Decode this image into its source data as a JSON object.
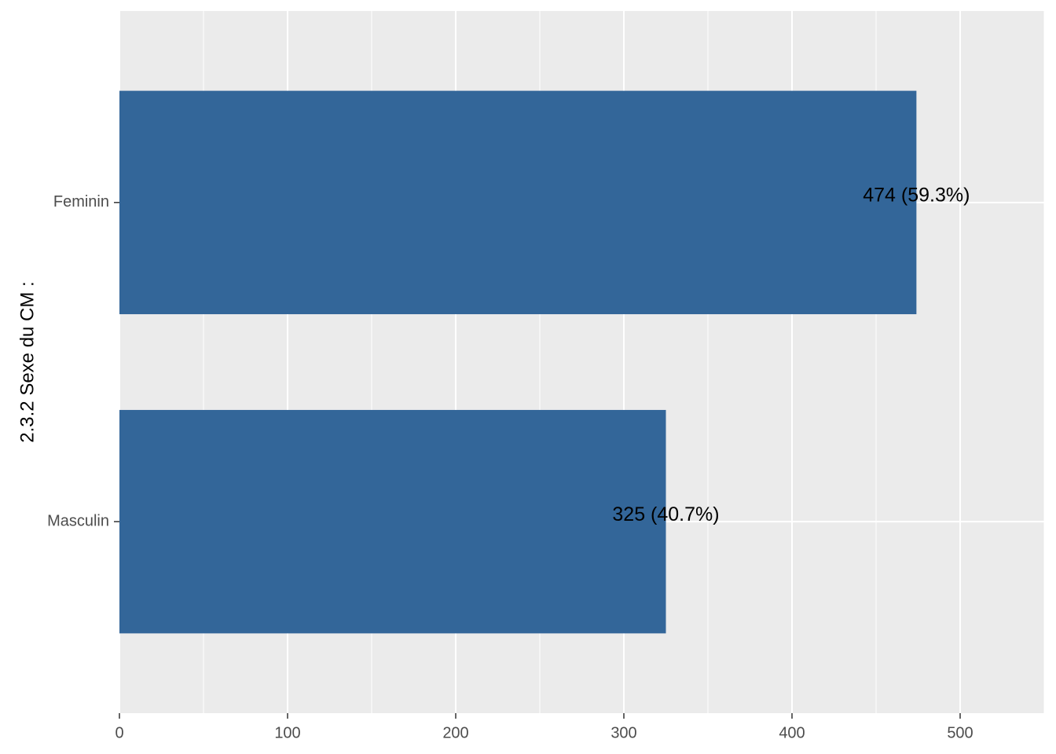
{
  "chart_data": {
    "type": "bar",
    "orientation": "horizontal",
    "categories": [
      "Feminin",
      "Masculin"
    ],
    "values": [
      474,
      325
    ],
    "data_labels": [
      "474 (59.3%)",
      "325 (40.7%)"
    ],
    "title": "",
    "xlabel": "",
    "ylabel": "2.3.2 Sexe du CM :",
    "xlim": [
      0,
      550
    ],
    "x_ticks": [
      0,
      100,
      200,
      300,
      400,
      500
    ],
    "grid": true,
    "legend": "none",
    "colors": {
      "bar": "#336699",
      "panel_background": "#ebebeb",
      "grid_major": "#ffffff",
      "tick_label": "#4d4d4d",
      "axis_title": "#000000",
      "data_label": "#000000"
    }
  }
}
